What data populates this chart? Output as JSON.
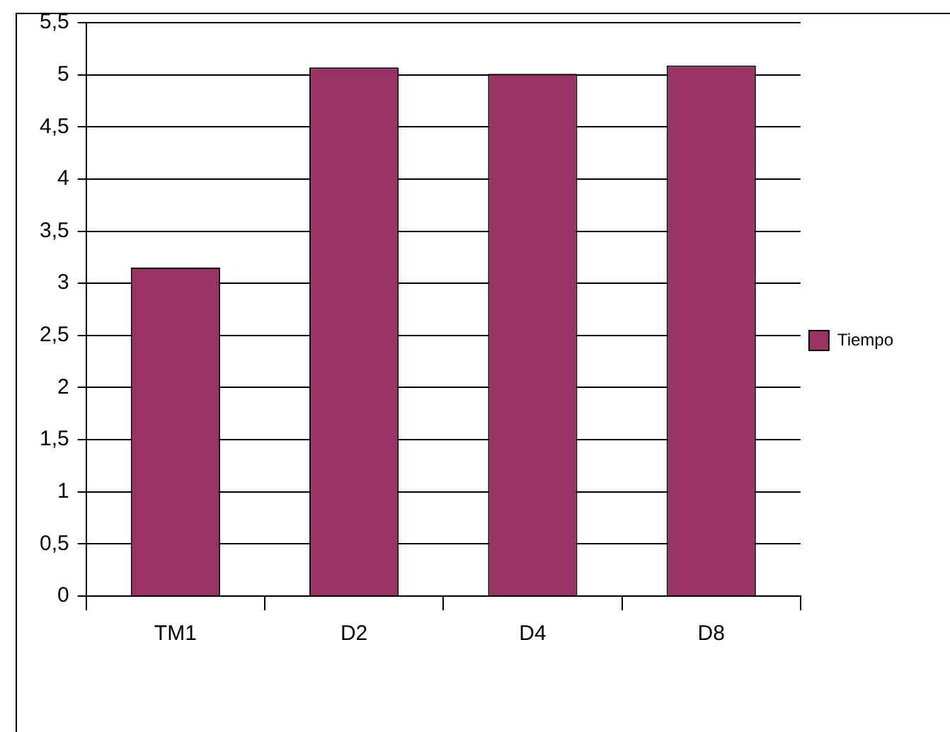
{
  "chart_data": {
    "type": "bar",
    "categories": [
      "TM1",
      "D2",
      "D4",
      "D8"
    ],
    "series": [
      {
        "name": "Tiempo",
        "color": "#993366",
        "values": [
          3.15,
          5.07,
          5.01,
          5.09
        ]
      }
    ],
    "ylim": [
      0,
      5.5
    ],
    "yticks": [
      0,
      {
        "value": 0.5,
        "label": "0,5"
      },
      1,
      {
        "value": 1.5,
        "label": "1,5"
      },
      2,
      {
        "value": 2.5,
        "label": "2,5"
      },
      3,
      {
        "value": 3.5,
        "label": "3,5"
      },
      4,
      {
        "value": 4.5,
        "label": "4,5"
      },
      5,
      {
        "value": 5.5,
        "label": "5,5"
      }
    ],
    "grid": "y",
    "legend": "right"
  }
}
